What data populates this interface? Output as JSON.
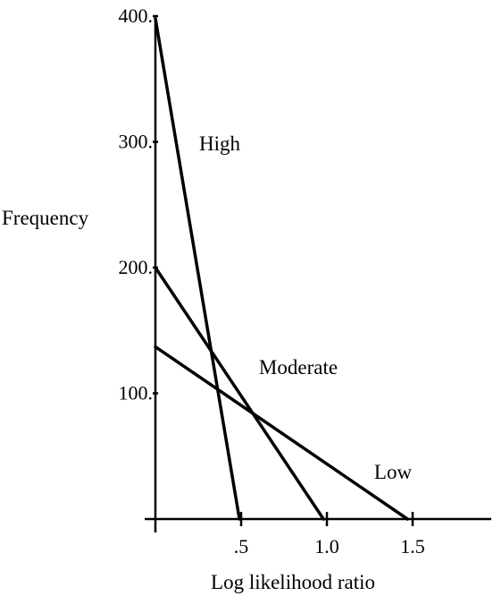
{
  "chart_data": {
    "type": "line",
    "xlabel": "Log likelihood ratio",
    "ylabel": "Frequency",
    "xlim": [
      0,
      2.0
    ],
    "ylim": [
      0,
      400
    ],
    "x_ticks": [
      {
        "value": 0.5,
        "label": ".5"
      },
      {
        "value": 1.0,
        "label": "1.0"
      },
      {
        "value": 1.5,
        "label": "1.5"
      }
    ],
    "y_ticks": [
      {
        "value": 100,
        "label": "100."
      },
      {
        "value": 200,
        "label": "200."
      },
      {
        "value": 300,
        "label": "300."
      },
      {
        "value": 400,
        "label": "400."
      }
    ],
    "grid": false,
    "legend": "none",
    "series": [
      {
        "name": "High",
        "points": [
          [
            0,
            398
          ],
          [
            0.49,
            0
          ]
        ]
      },
      {
        "name": "Moderate",
        "points": [
          [
            0,
            200
          ],
          [
            0.98,
            0
          ]
        ]
      },
      {
        "name": "Low",
        "points": [
          [
            0,
            137
          ],
          [
            1.47,
            0
          ]
        ]
      }
    ]
  }
}
